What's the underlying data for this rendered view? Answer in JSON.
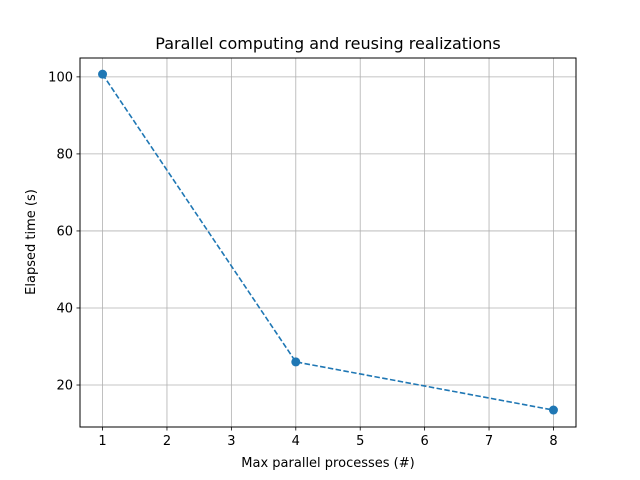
{
  "chart_data": {
    "type": "line",
    "title": "Parallel computing and reusing realizations",
    "xlabel": "Max parallel processes (#)",
    "ylabel": "Elapsed time (s)",
    "x": [
      1,
      4,
      8
    ],
    "series": [
      {
        "name": "Elapsed time",
        "values": [
          100.7,
          26.0,
          13.5
        ],
        "color": "#1f77b4",
        "linestyle": "dashed",
        "marker": "circle"
      }
    ],
    "xticks": [
      1,
      2,
      3,
      4,
      5,
      6,
      7,
      8
    ],
    "yticks": [
      20,
      40,
      60,
      80,
      100
    ],
    "xlim": [
      0.65,
      8.35
    ],
    "ylim": [
      9.1,
      104.9
    ],
    "grid": true,
    "legend": null
  }
}
